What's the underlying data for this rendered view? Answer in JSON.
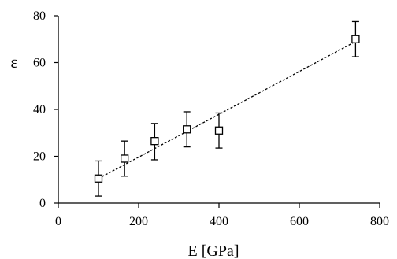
{
  "chart_data": {
    "type": "scatter",
    "title": "",
    "xlabel": "E [GPa]",
    "ylabel": "ε",
    "xlim": [
      0,
      800
    ],
    "ylim": [
      0,
      80
    ],
    "x_ticks": [
      0,
      200,
      400,
      600,
      800
    ],
    "y_ticks": [
      0,
      20,
      40,
      60,
      80
    ],
    "grid": false,
    "legend": "none",
    "marker": "open-square",
    "series": [
      {
        "x": [
          100,
          165,
          240,
          320,
          400,
          740
        ],
        "y": [
          10.5,
          19,
          26.5,
          31.5,
          31,
          70
        ],
        "error_low": [
          7.5,
          7.5,
          8,
          7.5,
          7.5,
          7.5
        ],
        "error_high": [
          7.5,
          7.5,
          7.5,
          7.5,
          7.5,
          7.5
        ]
      }
    ],
    "trendline": {
      "style": "dashed",
      "x": [
        100,
        740
      ],
      "y": [
        10.5,
        69
      ]
    },
    "colors": {
      "marker": "#000000",
      "line": "#000000",
      "axis": "#000000"
    }
  }
}
